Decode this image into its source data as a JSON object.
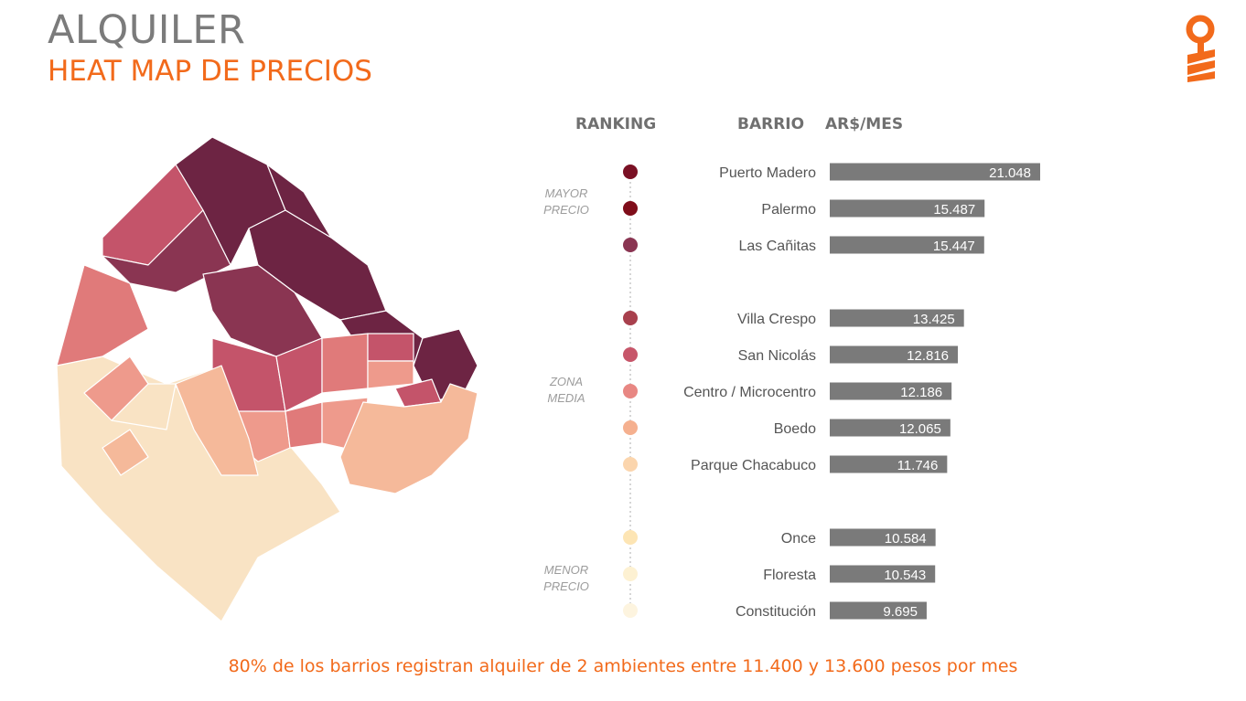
{
  "header": {
    "title": "ALQUILER",
    "subtitle": "HEAT MAP DE PRECIOS"
  },
  "columns": {
    "ranking": "RANKING",
    "barrio": "BARRIO",
    "price": "AR$/MES"
  },
  "groups": {
    "top": [
      "MAYOR",
      "PRECIO"
    ],
    "mid": [
      "ZONA",
      "MEDIA"
    ],
    "low": [
      "MENOR",
      "PRECIO"
    ]
  },
  "footer": "80% de los barrios registran alquiler de 2 ambientes entre 11.400 y 13.600 pesos por mes",
  "colors": {
    "bar": "#7a7a7a",
    "accent": "#f26a1b",
    "ranking_dots": [
      "#7a1024",
      "#7f0d1a",
      "#8a3552",
      "#a8404d",
      "#c7566a",
      "#e88783",
      "#f5b08f",
      "#fbd5ad",
      "#fde5b4",
      "#fdf1d2",
      "#fdf4df"
    ],
    "map_scale": [
      "#6d2443",
      "#8a3552",
      "#c4546a",
      "#e07a7a",
      "#ee9a8c",
      "#f5b99a",
      "#f9e3c4"
    ]
  },
  "chart_data": {
    "type": "bar",
    "orientation": "horizontal",
    "categories": [
      "Puerto Madero",
      "Palermo",
      "Las Cañitas",
      "Villa Crespo",
      "San Nicolás",
      "Centro / Microcentro",
      "Boedo",
      "Parque Chacabuco",
      "Once",
      "Floresta",
      "Constitución"
    ],
    "values": [
      21048,
      15487,
      15447,
      13425,
      12816,
      12186,
      12065,
      11746,
      10584,
      10543,
      9695
    ],
    "value_labels": [
      "21.048",
      "15.487",
      "15.447",
      "13.425",
      "12.816",
      "12.186",
      "12.065",
      "11.746",
      "10.584",
      "10.543",
      "9.695"
    ],
    "groups": [
      [
        0,
        1,
        2
      ],
      [
        3,
        4,
        5,
        6,
        7
      ],
      [
        8,
        9,
        10
      ]
    ],
    "unit": "AR$/MES",
    "xlim": [
      0,
      21048
    ]
  }
}
